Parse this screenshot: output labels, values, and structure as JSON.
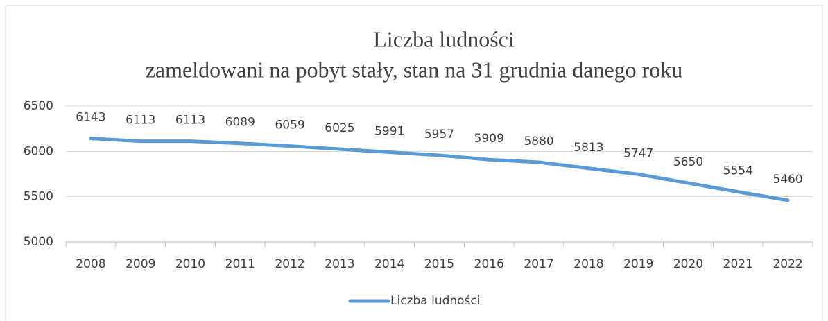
{
  "chart_data": {
    "type": "line",
    "title": "Liczba ludności",
    "subtitle": "zameldowani na pobyt stały, stan na 31 grudnia danego roku",
    "categories": [
      "2008",
      "2009",
      "2010",
      "2011",
      "2012",
      "2013",
      "2014",
      "2015",
      "2016",
      "2017",
      "2018",
      "2019",
      "2020",
      "2021",
      "2022"
    ],
    "series": [
      {
        "name": "Liczba ludności",
        "color": "#5b9bd5",
        "values": [
          6143,
          6113,
          6113,
          6089,
          6059,
          6025,
          5991,
          5957,
          5909,
          5880,
          5813,
          5747,
          5650,
          5554,
          5460
        ]
      }
    ],
    "ylim": [
      5000,
      6500
    ],
    "yticks": [
      5000,
      5500,
      6000,
      6500
    ],
    "grid": true,
    "legend": "bottom",
    "data_labels": true
  }
}
